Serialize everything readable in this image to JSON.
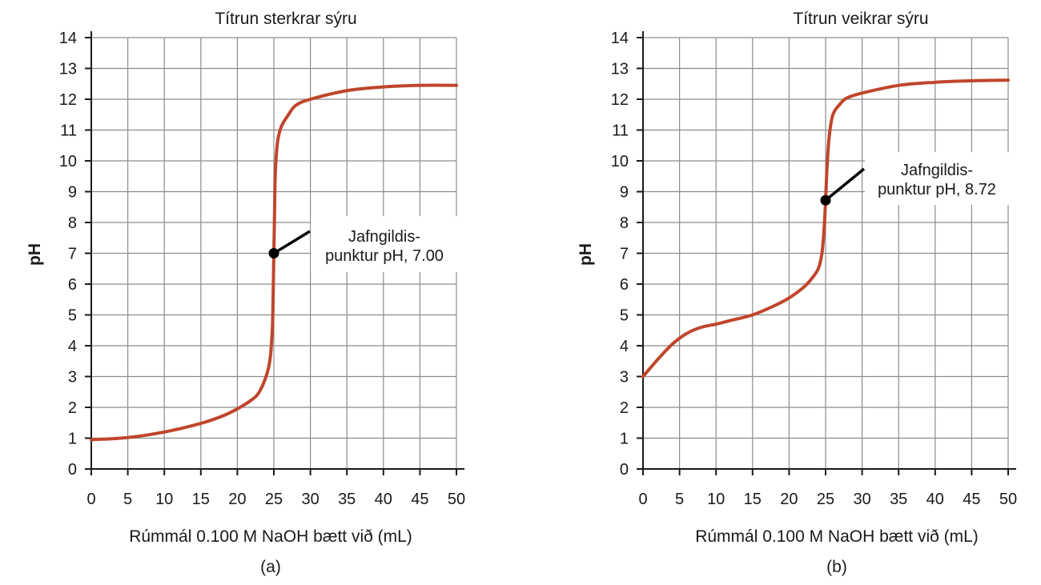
{
  "colors": {
    "curve": "#c0452b",
    "marker": "#000000",
    "grid": "#8c8c8c"
  },
  "chart_data": [
    {
      "type": "line",
      "title": "Títrun sterkrar sýru",
      "xlabel": "Rúmmál 0.100 M NaOH bætt við (mL)",
      "ylabel": "pH",
      "panel_label": "(a)",
      "xlim": [
        0,
        50
      ],
      "ylim": [
        0,
        14
      ],
      "x_ticks": [
        0,
        5,
        10,
        15,
        20,
        25,
        30,
        35,
        40,
        45,
        50
      ],
      "y_ticks": [
        0,
        1,
        2,
        3,
        4,
        5,
        6,
        7,
        8,
        9,
        10,
        11,
        12,
        13,
        14
      ],
      "grid": true,
      "series": [
        {
          "x": [
            0,
            5,
            10,
            15,
            18,
            20,
            22,
            23,
            24,
            24.5,
            24.8,
            24.9,
            25,
            25.1,
            25.2,
            25.5,
            26,
            27,
            28,
            30,
            35,
            40,
            45,
            50
          ],
          "y": [
            0.95,
            1.02,
            1.2,
            1.48,
            1.72,
            1.95,
            2.25,
            2.5,
            3.05,
            3.6,
            4.6,
            5.6,
            7.0,
            8.4,
            9.6,
            10.6,
            11.1,
            11.5,
            11.8,
            12.0,
            12.28,
            12.4,
            12.45,
            12.45
          ]
        }
      ],
      "annotation": {
        "lines": [
          "Jafngildis-",
          "punktur pH, 7.00"
        ],
        "x": 25,
        "y": 7.0
      }
    },
    {
      "type": "line",
      "title": "Títrun veikrar sýru",
      "xlabel": "Rúmmál 0.100 M NaOH bætt við (mL)",
      "ylabel": "pH",
      "panel_label": "(b)",
      "xlim": [
        0,
        50
      ],
      "ylim": [
        0,
        14
      ],
      "x_ticks": [
        0,
        5,
        10,
        15,
        20,
        25,
        30,
        35,
        40,
        45,
        50
      ],
      "y_ticks": [
        0,
        1,
        2,
        3,
        4,
        5,
        6,
        7,
        8,
        9,
        10,
        11,
        12,
        13,
        14
      ],
      "grid": true,
      "series": [
        {
          "x": [
            0,
            2,
            4,
            6,
            8,
            10,
            12,
            15,
            18,
            20,
            22,
            23,
            24,
            24.5,
            24.8,
            25,
            25.2,
            25.5,
            26,
            27,
            28,
            30,
            35,
            40,
            45,
            50
          ],
          "y": [
            3.0,
            3.55,
            4.05,
            4.4,
            4.6,
            4.7,
            4.82,
            5.0,
            5.3,
            5.55,
            5.9,
            6.15,
            6.5,
            7.0,
            7.8,
            8.72,
            9.8,
            10.8,
            11.5,
            11.85,
            12.05,
            12.2,
            12.45,
            12.55,
            12.6,
            12.62
          ]
        }
      ],
      "annotation": {
        "lines": [
          "Jafngildis-",
          "punktur pH, 8.72"
        ],
        "x": 25,
        "y": 8.72
      }
    }
  ]
}
